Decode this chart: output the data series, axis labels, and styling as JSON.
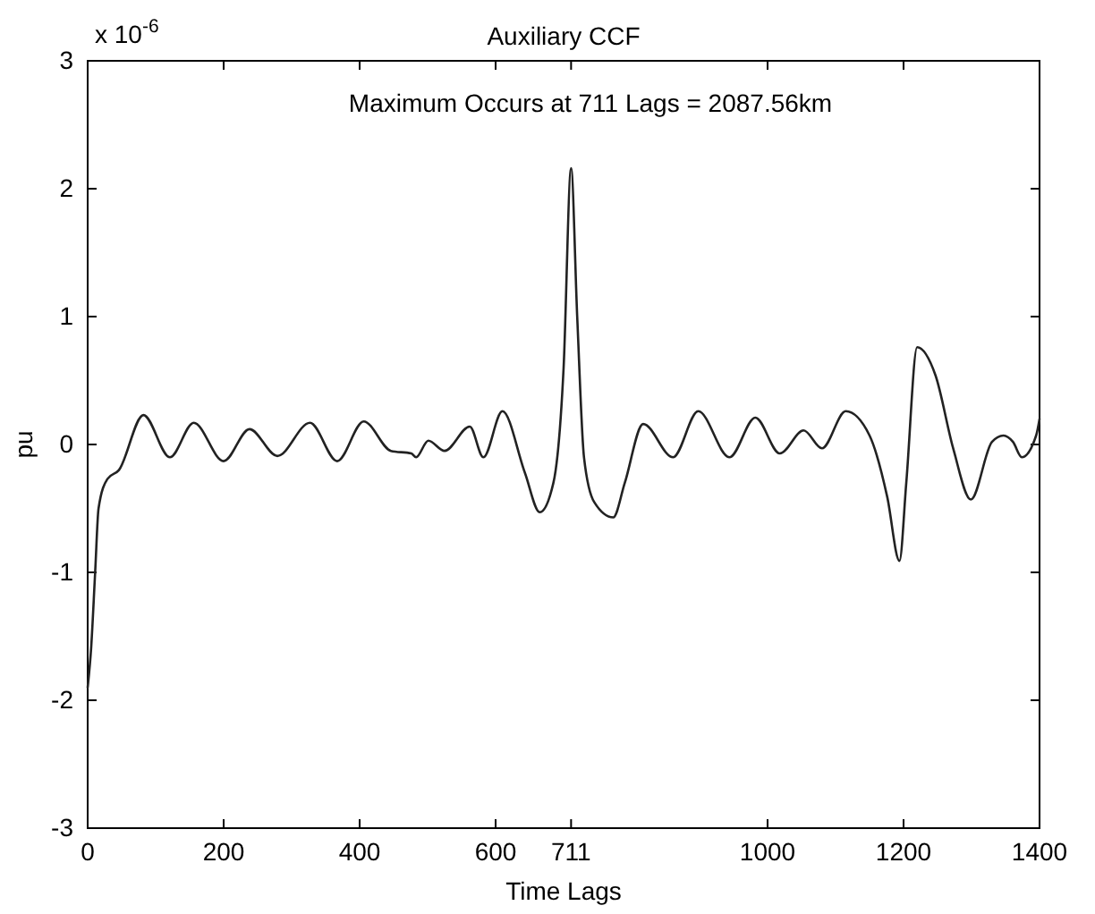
{
  "chart_data": {
    "type": "line",
    "title": "Auxiliary CCF",
    "xlabel": "Time Lags",
    "ylabel": "pu",
    "annotations": [
      "x 10$^{-6}$",
      "Maximum Occurs at 711 Lags =  2087.56km"
    ],
    "xlim": [
      0,
      1400
    ],
    "ylim": [
      -3,
      3
    ],
    "xticks": [
      0,
      200,
      400,
      600,
      711,
      1000,
      1200,
      1400
    ],
    "yticks": [
      -3,
      -2,
      -1,
      0,
      1,
      2,
      3
    ],
    "grid": false,
    "marker": "none",
    "line_style": "solid",
    "series": [
      {
        "color": "#222222",
        "x": [
          0,
          5,
          11,
          16,
          29,
          46,
          82,
          121,
          156,
          200,
          238,
          279,
          327,
          367,
          406,
          446,
          476,
          483,
          501,
          525,
          562,
          582,
          610,
          643,
          665,
          685,
          700,
          711,
          720,
          730,
          745,
          773,
          790,
          817,
          861,
          898,
          944,
          982,
          1018,
          1053,
          1080,
          1115,
          1150,
          1176,
          1194,
          1204,
          1220,
          1247,
          1273,
          1299,
          1330,
          1347,
          1361,
          1374,
          1395,
          1400
        ],
        "values": [
          -1.9,
          -1.6,
          -1.0,
          -0.5,
          -0.27,
          -0.2,
          0.23,
          -0.1,
          0.17,
          -0.13,
          0.12,
          -0.09,
          0.17,
          -0.13,
          0.18,
          -0.05,
          -0.07,
          -0.1,
          0.03,
          -0.05,
          0.14,
          -0.1,
          0.26,
          -0.22,
          -0.53,
          -0.3,
          0.6,
          2.16,
          1.0,
          -0.1,
          -0.45,
          -0.57,
          -0.3,
          0.16,
          -0.1,
          0.26,
          -0.1,
          0.21,
          -0.07,
          0.11,
          -0.03,
          0.26,
          0.07,
          -0.41,
          -0.91,
          -0.3,
          0.76,
          0.54,
          -0.03,
          -0.43,
          0.02,
          0.07,
          0.02,
          -0.1,
          0.07,
          0.2
        ]
      }
    ]
  }
}
